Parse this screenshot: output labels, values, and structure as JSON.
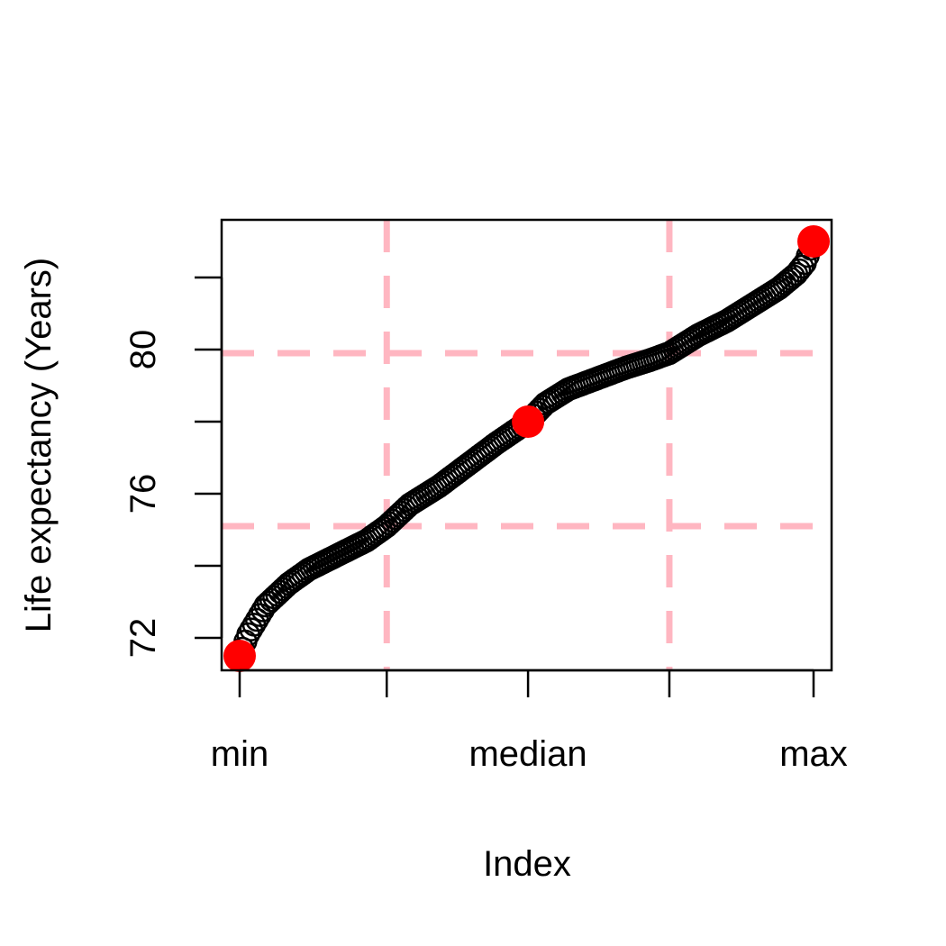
{
  "chart_data": {
    "type": "scatter",
    "title": "",
    "xlabel": "Index",
    "ylabel": "Life expectancy (Years)",
    "xlim": [
      1,
      200
    ],
    "ylim": [
      71.1,
      83.6
    ],
    "x_ticks": [
      {
        "value": 1,
        "label": "min"
      },
      {
        "value": 52,
        "label": ""
      },
      {
        "value": 101,
        "label": "median"
      },
      {
        "value": 150,
        "label": ""
      },
      {
        "value": 200,
        "label": "max"
      }
    ],
    "y_ticks": [
      {
        "value": 72,
        "label": "72"
      },
      {
        "value": 74,
        "label": ""
      },
      {
        "value": 76,
        "label": "76"
      },
      {
        "value": 78,
        "label": ""
      },
      {
        "value": 80,
        "label": "80"
      },
      {
        "value": 82,
        "label": ""
      }
    ],
    "reference_lines": {
      "vertical": [
        52,
        150
      ],
      "horizontal": [
        75.1,
        79.9
      ],
      "color": "#ffb6c1",
      "style": "dashed"
    },
    "curve_knots": [
      [
        1,
        71.5
      ],
      [
        4,
        72.1
      ],
      [
        10,
        72.9
      ],
      [
        18,
        73.5
      ],
      [
        25,
        73.9
      ],
      [
        35,
        74.3
      ],
      [
        45,
        74.7
      ],
      [
        52,
        75.1
      ],
      [
        60,
        75.7
      ],
      [
        70,
        76.2
      ],
      [
        80,
        76.8
      ],
      [
        90,
        77.4
      ],
      [
        101,
        78.0
      ],
      [
        107,
        78.5
      ],
      [
        115,
        78.9
      ],
      [
        125,
        79.2
      ],
      [
        135,
        79.5
      ],
      [
        143,
        79.7
      ],
      [
        150,
        79.9
      ],
      [
        160,
        80.4
      ],
      [
        170,
        80.8
      ],
      [
        180,
        81.3
      ],
      [
        188,
        81.7
      ],
      [
        194,
        82.1
      ],
      [
        197,
        82.4
      ],
      [
        200,
        83.0
      ]
    ],
    "n_points": 200,
    "point_style": "open-circle",
    "point_color": "#000000",
    "highlight_points": [
      {
        "label": "min",
        "x": 1,
        "y": 71.5
      },
      {
        "label": "median",
        "x": 101,
        "y": 78.0
      },
      {
        "label": "max",
        "x": 200,
        "y": 83.0
      }
    ],
    "highlight_color": "#ff0000",
    "grid": false,
    "legend": "none"
  }
}
